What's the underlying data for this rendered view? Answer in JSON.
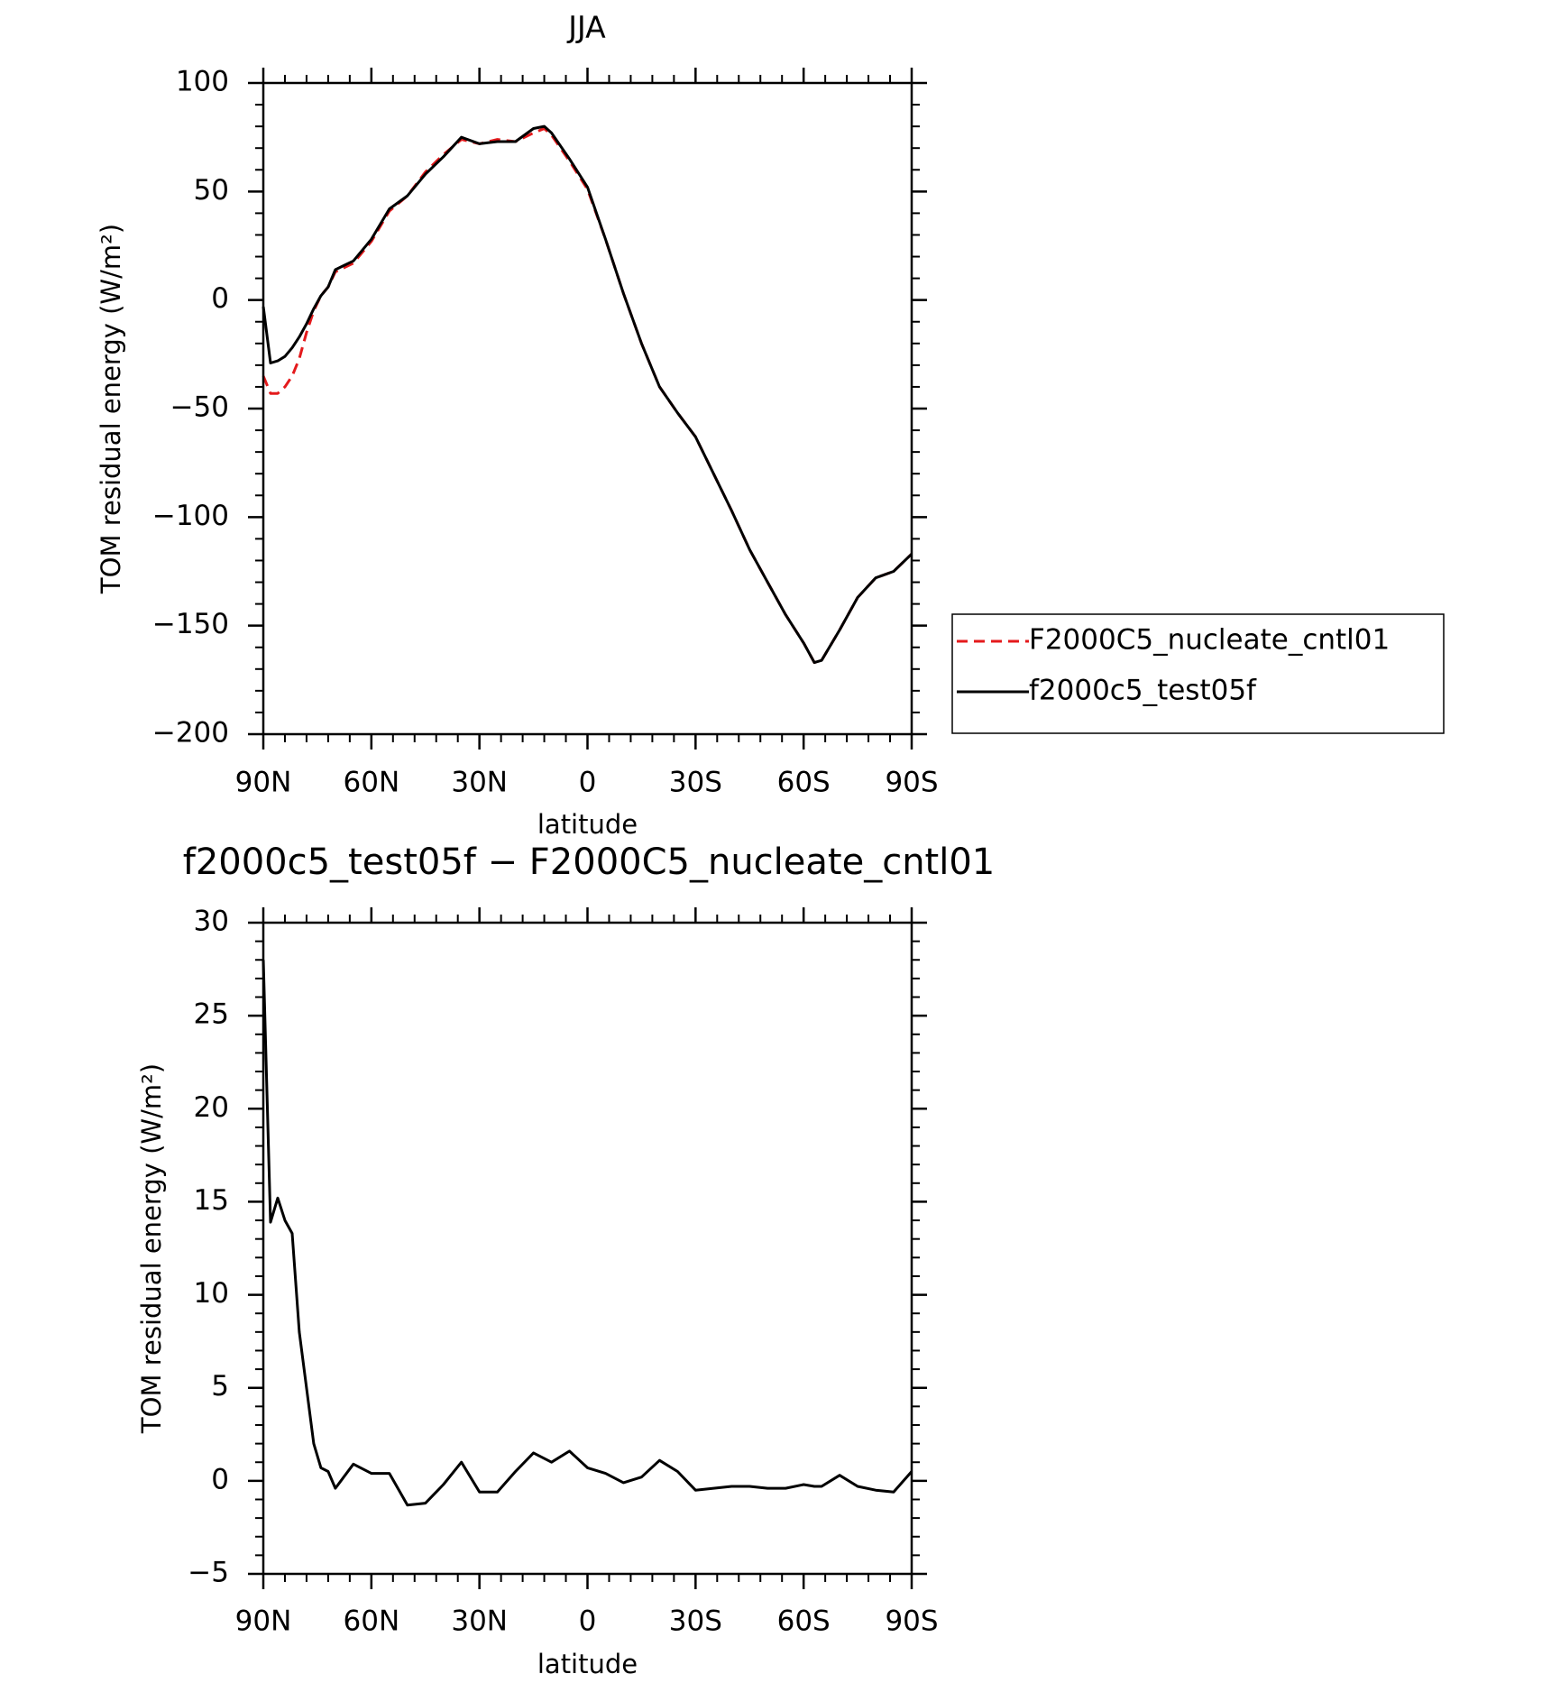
{
  "chart_data": [
    {
      "type": "line",
      "title": "JJA",
      "xlabel": "latitude",
      "ylabel": "TOM residual energy (W/m²)",
      "x": [
        90,
        88,
        86,
        84,
        82,
        80,
        78,
        76,
        74,
        72,
        70,
        65,
        60,
        55,
        50,
        45,
        40,
        35,
        30,
        25,
        20,
        15,
        12,
        10,
        5,
        0,
        -5,
        -10,
        -15,
        -20,
        -25,
        -30,
        -35,
        -40,
        -45,
        -50,
        -55,
        -60,
        -63,
        -65,
        -70,
        -75,
        -80,
        -85,
        -90
      ],
      "series": [
        {
          "name": "F2000C5_nucleate_cntl01",
          "color": "#e41a1c",
          "dash": true,
          "values": [
            -35,
            -43,
            -43,
            -40,
            -35,
            -27,
            -15,
            -5,
            2,
            6,
            13,
            17,
            27,
            41,
            48,
            59,
            67,
            74,
            72,
            74,
            73,
            77,
            79,
            76,
            64,
            51,
            28,
            3,
            -20,
            -40,
            -52,
            -63,
            -80,
            -97,
            -115,
            -130,
            -145,
            -158,
            -167,
            -166,
            -152,
            -137,
            -128,
            -125,
            -117
          ]
        },
        {
          "name": "f2000c5_test05f",
          "color": "#000000",
          "dash": false,
          "values": [
            -3,
            -29,
            -28,
            -26,
            -22,
            -17,
            -11,
            -4,
            2,
            6,
            14,
            18,
            28,
            42,
            48,
            58,
            66,
            75,
            72,
            73,
            73,
            79,
            80,
            77,
            65,
            52,
            28,
            3,
            -20,
            -40,
            -52,
            -63,
            -80,
            -97,
            -115,
            -130,
            -145,
            -158,
            -167,
            -166,
            -152,
            -137,
            -128,
            -125,
            -117
          ]
        }
      ],
      "xlim": [
        90,
        -90
      ],
      "xticks": [
        {
          "value": 90,
          "label": "90N"
        },
        {
          "value": 60,
          "label": "60N"
        },
        {
          "value": 30,
          "label": "30N"
        },
        0,
        {
          "value": -30,
          "label": "30S"
        },
        {
          "value": -60,
          "label": "60S"
        },
        {
          "value": -90,
          "label": "90S"
        }
      ],
      "ylim": [
        -200,
        100
      ],
      "yticks": [
        {
          "value": -200,
          "label": "−200"
        },
        {
          "value": -150,
          "label": "−150"
        },
        {
          "value": -100,
          "label": "−100"
        },
        {
          "value": -50,
          "label": "−50"
        },
        0,
        50,
        100
      ],
      "legend": "right"
    },
    {
      "type": "line",
      "title": "f2000c5_test05f − F2000C5_nucleate_cntl01",
      "xlabel": "latitude",
      "ylabel": "TOM residual energy (W/m²)",
      "x": [
        90,
        88,
        86,
        84,
        82,
        80,
        78,
        76,
        74,
        72,
        70,
        65,
        60,
        55,
        50,
        45,
        40,
        35,
        30,
        25,
        20,
        15,
        12,
        10,
        5,
        0,
        -5,
        -10,
        -15,
        -20,
        -25,
        -30,
        -35,
        -40,
        -45,
        -50,
        -55,
        -60,
        -63,
        -65,
        -70,
        -75,
        -80,
        -85,
        -90
      ],
      "series": [
        {
          "color": "#000000",
          "dash": false,
          "values": [
            28,
            13.9,
            15.2,
            14,
            13.3,
            8,
            5,
            2,
            0.7,
            0.5,
            -0.4,
            0.9,
            0.4,
            0.4,
            -1.3,
            -1.2,
            -0.2,
            1.0,
            -0.6,
            -0.6,
            0.5,
            1.5,
            1.2,
            1.0,
            1.6,
            0.7,
            0.4,
            -0.1,
            0.2,
            1.1,
            0.5,
            -0.5,
            -0.4,
            -0.3,
            -0.3,
            -0.4,
            -0.4,
            -0.2,
            -0.3,
            -0.3,
            0.3,
            -0.3,
            -0.5,
            -0.6,
            0.5
          ]
        }
      ],
      "xlim": [
        90,
        -90
      ],
      "xticks": [
        {
          "value": 90,
          "label": "90N"
        },
        {
          "value": 60,
          "label": "60N"
        },
        {
          "value": 30,
          "label": "30N"
        },
        0,
        {
          "value": -30,
          "label": "30S"
        },
        {
          "value": -60,
          "label": "60S"
        },
        {
          "value": -90,
          "label": "90S"
        }
      ],
      "ylim": [
        -5,
        30
      ],
      "yticks": [
        {
          "value": -5,
          "label": "−5"
        },
        0,
        5,
        10,
        15,
        20,
        25,
        30
      ]
    }
  ]
}
